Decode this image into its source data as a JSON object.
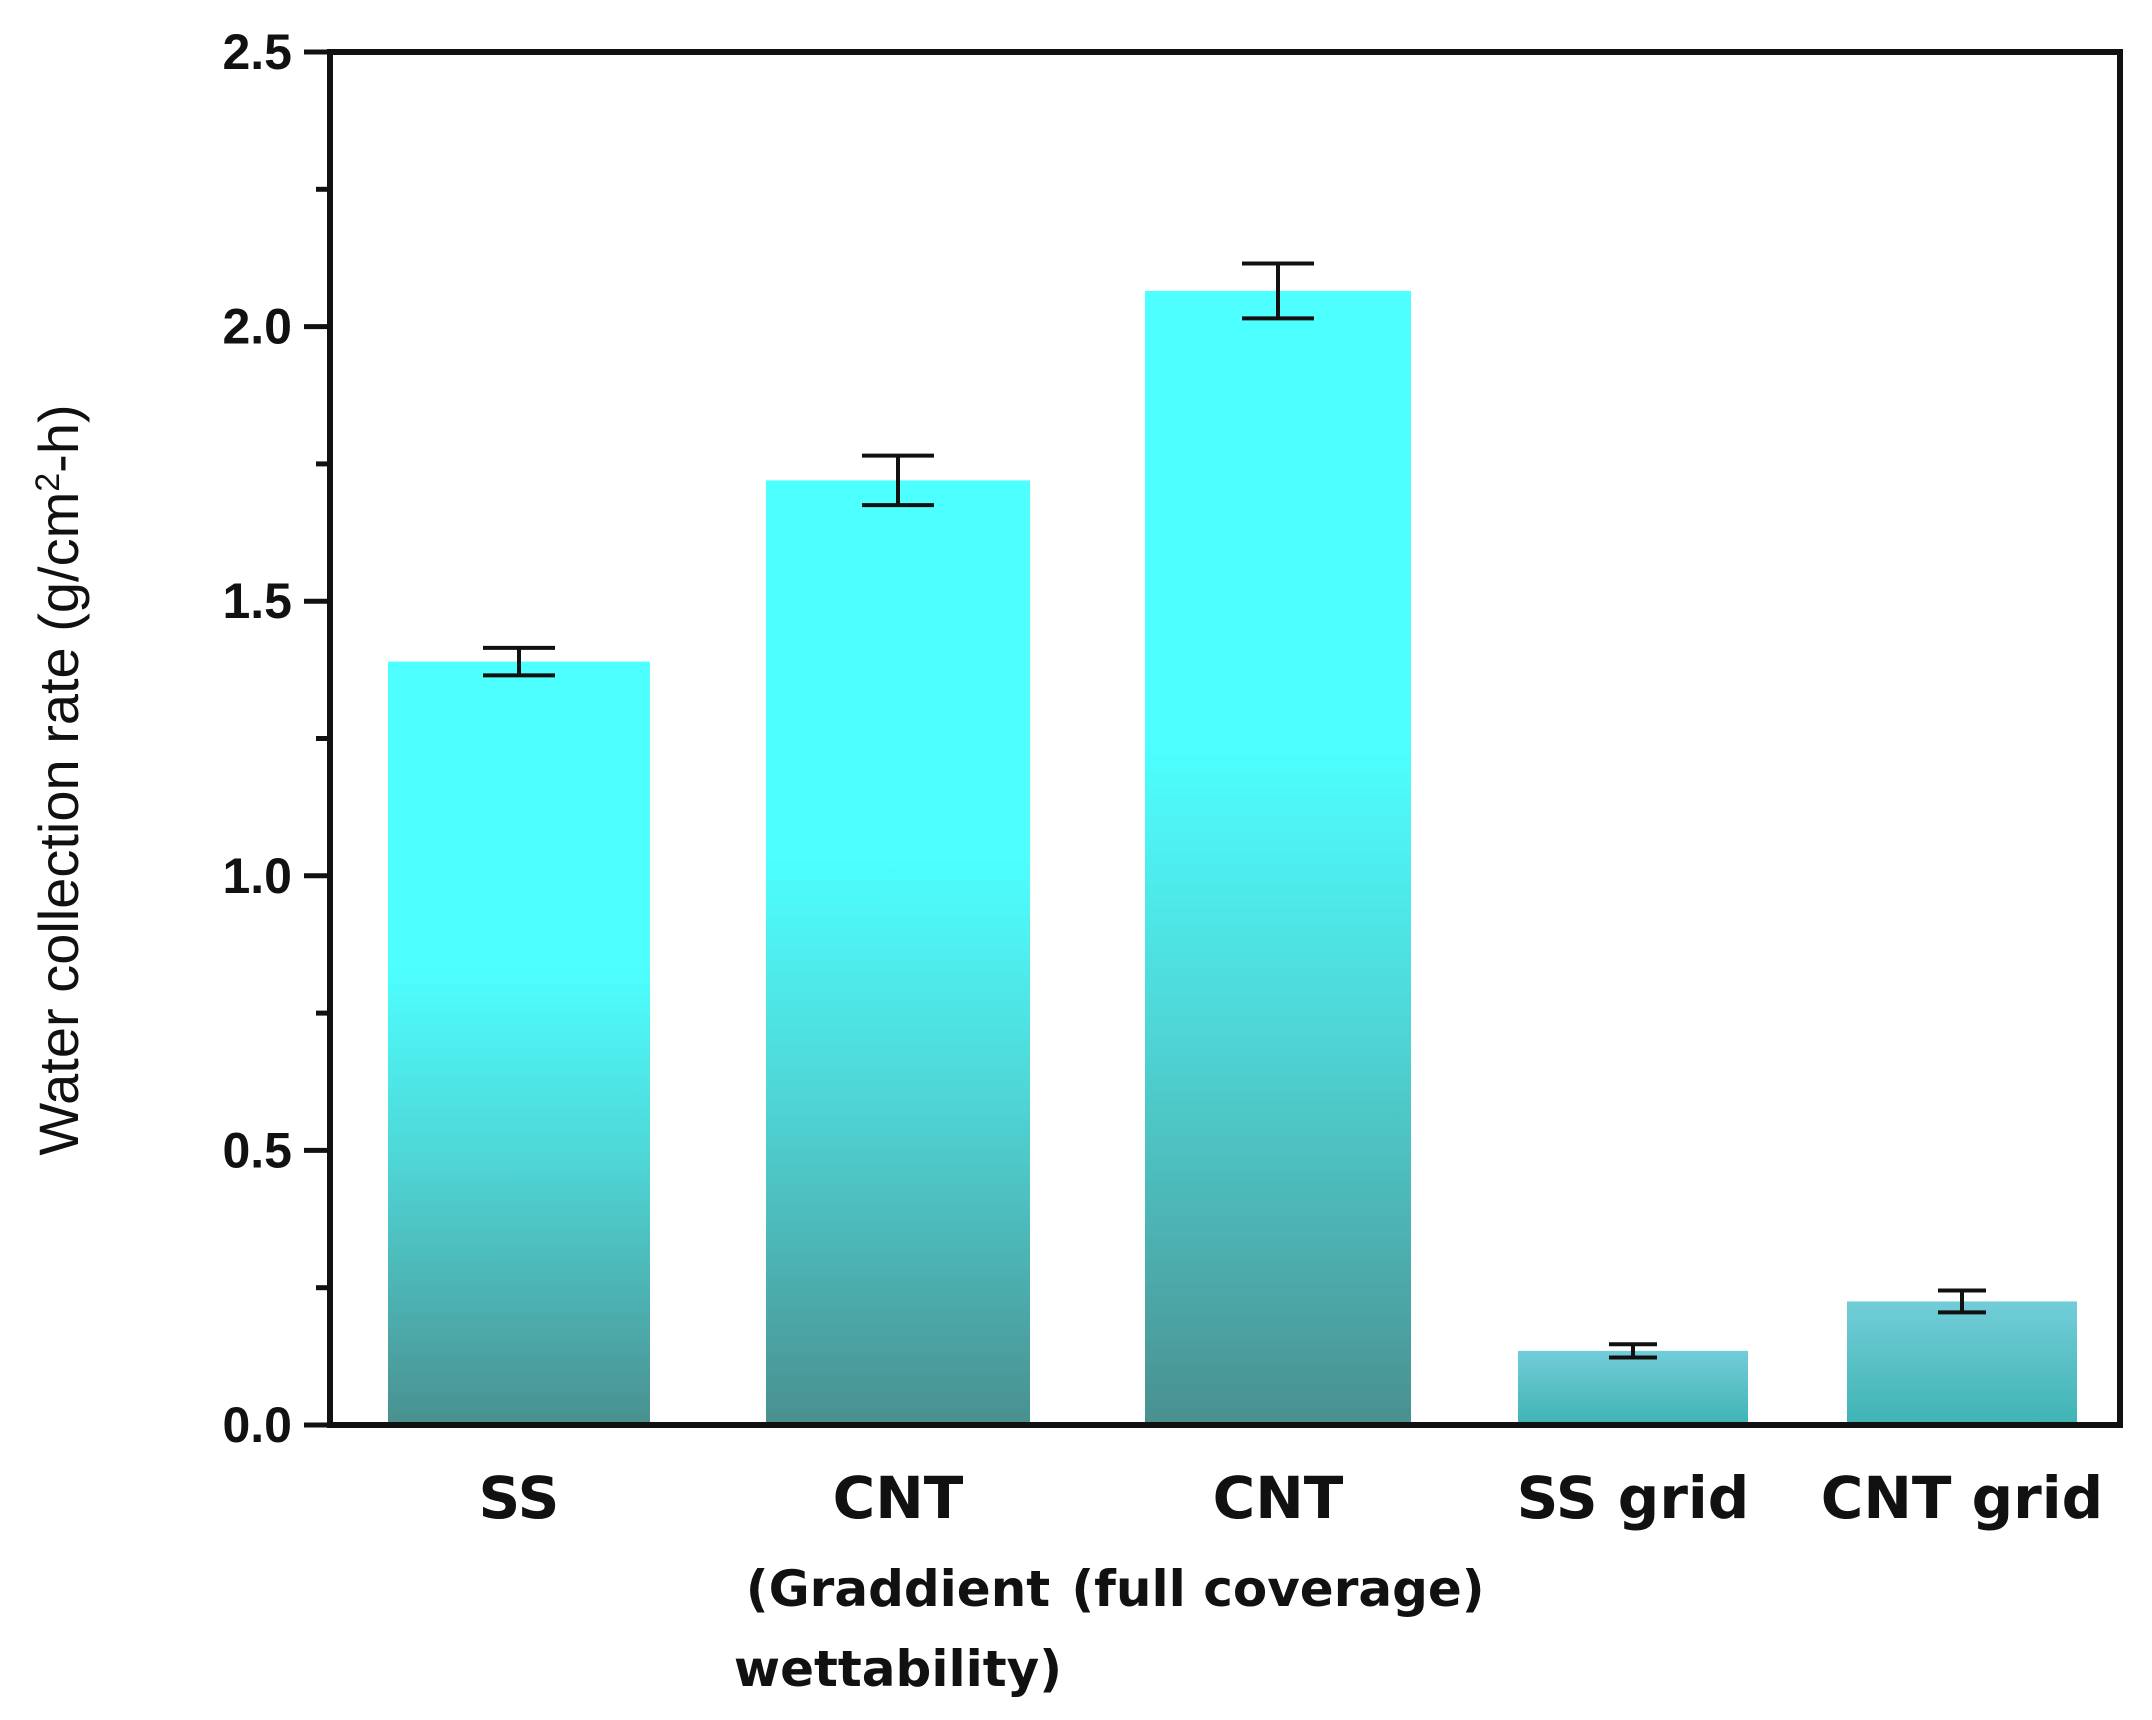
{
  "chart_data": {
    "type": "bar",
    "categories": [
      "SS",
      "CNT",
      "CNT",
      "SS grid",
      "CNT grid"
    ],
    "category_sublabels": [
      [],
      [
        "(Graddient",
        "wettability)"
      ],
      [
        "(full coverage)"
      ],
      [],
      []
    ],
    "values": [
      1.39,
      1.72,
      2.065,
      0.135,
      0.225
    ],
    "errors": [
      0.025,
      0.045,
      0.05,
      0.012,
      0.02
    ],
    "ylabel": "Water collection rate (g/cm",
    "ylabel_sup": "2",
    "ylabel_tail": "-h)",
    "ylim": [
      0,
      2.5
    ],
    "yticks": [
      "0.0",
      "0.5",
      "1.0",
      "1.5",
      "2.0",
      "2.5"
    ],
    "grid": false,
    "colors": {
      "bar_top": "#4dffff",
      "bar_mid": "#4fd6d6",
      "bar_bottom": "#4a9090",
      "grid_bar_top": "#72cdd8",
      "grid_bar_bottom": "#3fb4b4",
      "axis": "#111111"
    }
  }
}
